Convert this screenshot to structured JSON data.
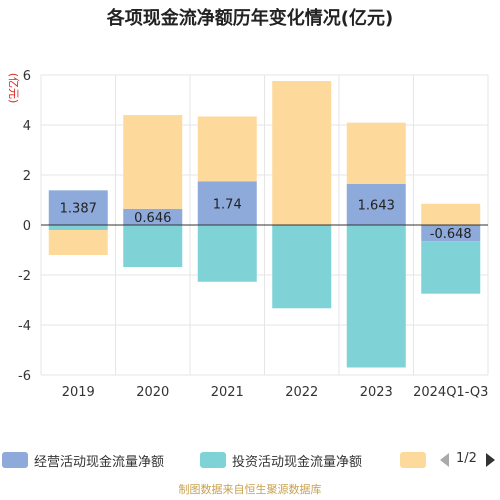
{
  "title": "各项现金流净额历年变化情况(亿元)",
  "source_text": "制图数据来自恒生聚源数据库",
  "legend": {
    "page": "1/2"
  },
  "chart_data": {
    "type": "bar",
    "stacked": true,
    "title": "各项现金流净额历年变化情况(亿元)",
    "ylabel": "(亿元)",
    "categories": [
      "2019",
      "2020",
      "2021",
      "2022",
      "2023",
      "2024Q1-Q3"
    ],
    "ylim": [
      -6,
      6
    ],
    "yticks": [
      -6,
      -4,
      -2,
      0,
      2,
      4,
      6
    ],
    "grid": true,
    "legend_position": "bottom",
    "series": [
      {
        "name": "经营活动现金流量净额",
        "color": "#8eaadb",
        "values": [
          1.387,
          0.646,
          1.74,
          0.01,
          1.643,
          -0.648
        ],
        "labels": [
          "1.387",
          "0.646",
          "1.74",
          "",
          "1.643",
          "-0.648"
        ]
      },
      {
        "name": "投资活动现金流量净额",
        "color": "#7fd3d6",
        "values": [
          -0.2,
          -1.68,
          -2.27,
          -3.33,
          -5.7,
          -2.1
        ]
      },
      {
        "name": "",
        "color": "#fdd99b",
        "values": [
          -1.0,
          3.75,
          2.6,
          5.75,
          2.45,
          0.85
        ]
      }
    ]
  }
}
